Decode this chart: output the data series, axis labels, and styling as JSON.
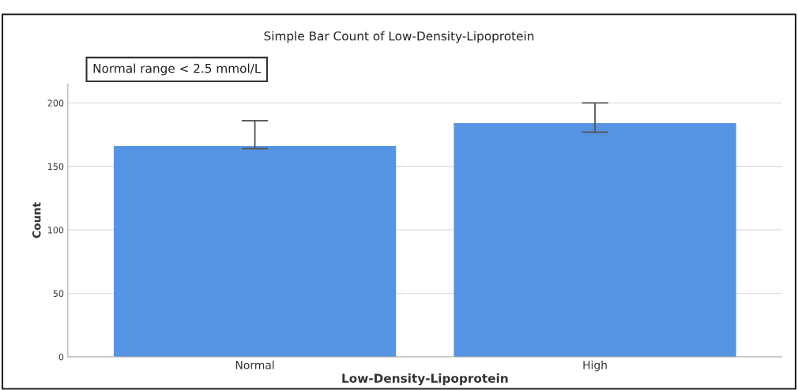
{
  "chart_data": {
    "type": "bar",
    "title": "Simple Bar Count of Low-Density-Lipoprotein",
    "xlabel": "Low-Density-Lipoprotein",
    "ylabel": "Count",
    "annotations": [
      "Normal range < 2.5 mmol/L"
    ],
    "categories": [
      "Normal",
      "High"
    ],
    "values": [
      166,
      184
    ],
    "errors": [
      [
        164,
        186
      ],
      [
        177,
        200
      ]
    ],
    "color": "#5594e2",
    "ylim": [
      0,
      215
    ],
    "yticks": [
      0,
      50,
      100,
      150,
      200
    ],
    "grid": "y"
  }
}
